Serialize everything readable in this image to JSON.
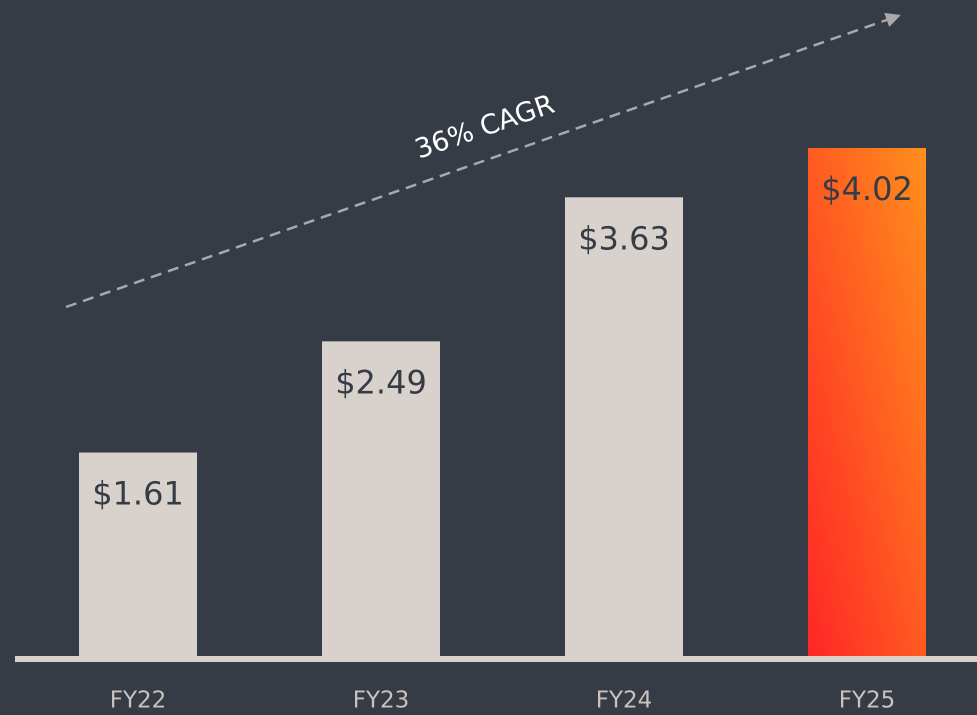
{
  "chart_data": {
    "type": "bar",
    "categories": [
      "FY22",
      "FY23",
      "FY24",
      "FY25"
    ],
    "values": [
      1.61,
      2.49,
      3.63,
      4.02
    ],
    "value_labels": [
      "$1.61",
      "$2.49",
      "$3.63",
      "$4.02"
    ],
    "colors": [
      "#d9d1cb",
      "#d9d1cb",
      "#d9d1cb",
      [
        "#ff2626",
        "#ff8f1c"
      ]
    ],
    "annotation": "36% CAGR"
  }
}
